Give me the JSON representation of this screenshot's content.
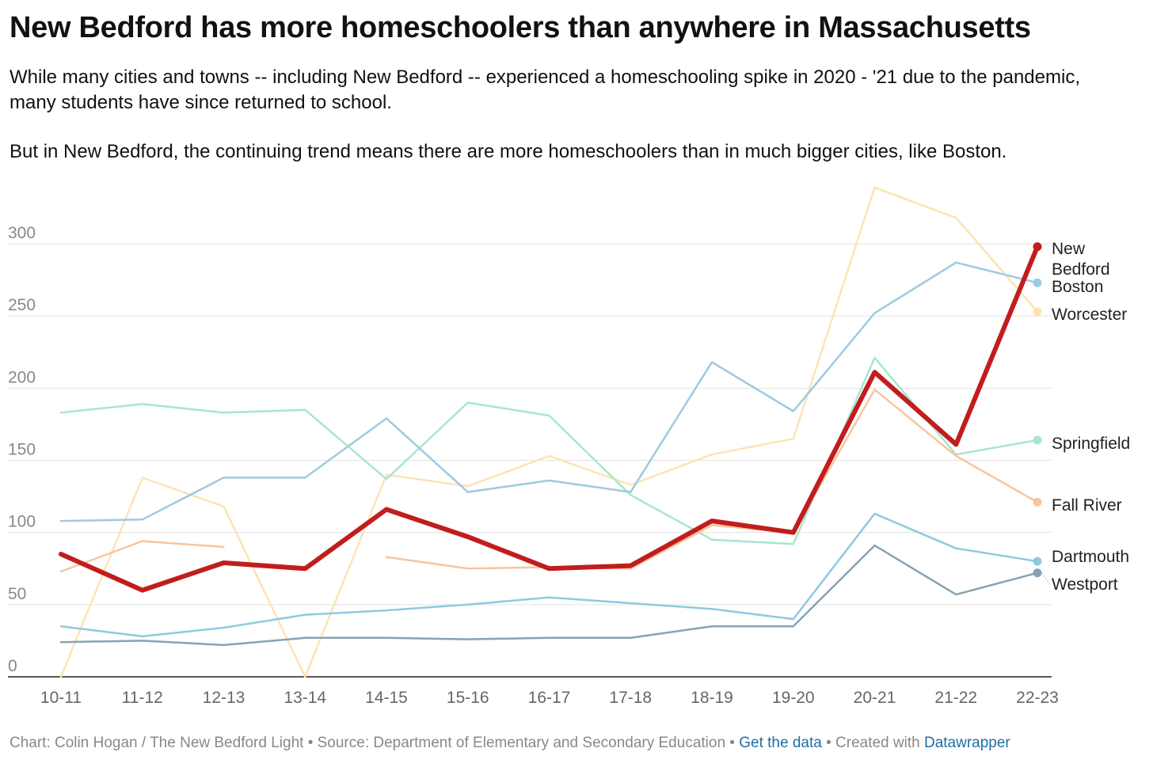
{
  "title": "New Bedford has more homeschoolers than anywhere in Massachusetts",
  "description": [
    "While many cities and towns -- including New Bedford -- experienced a homeschooling spike in 2020 - '21 due to the pandemic, many students have since returned to school.",
    "But in New Bedford, the continuing trend means there are more homeschoolers than in much bigger cities, like Boston."
  ],
  "footer": {
    "credit": "Chart: Colin Hogan / The New Bedford Light • Source: Department of Elementary and Secondary Education • ",
    "get_data": "Get the data",
    "sep": " • Created with ",
    "datawrapper": "Datawrapper"
  },
  "chart_data": {
    "type": "line",
    "categories": [
      "10-11",
      "11-12",
      "12-13",
      "13-14",
      "14-15",
      "15-16",
      "16-17",
      "17-18",
      "18-19",
      "19-20",
      "20-21",
      "21-22",
      "22-23"
    ],
    "ylim": [
      0,
      300
    ],
    "yticks": [
      0,
      50,
      100,
      150,
      200,
      250,
      300
    ],
    "grid": true,
    "legend": "direct labels at line ends",
    "series": [
      {
        "name": "Worcester",
        "color": "#fde3b5",
        "width": 2.5,
        "values": [
          0,
          138,
          118,
          0,
          140,
          132,
          153,
          133,
          154,
          165,
          339,
          318,
          253
        ]
      },
      {
        "name": "Springfield",
        "color": "#a8e6cf",
        "width": 2.5,
        "values": [
          183,
          189,
          183,
          185,
          137,
          190,
          181,
          126,
          95,
          92,
          221,
          154,
          164
        ]
      },
      {
        "name": "Boston",
        "color": "#9ecae1",
        "width": 2.5,
        "values": [
          108,
          109,
          138,
          138,
          179,
          128,
          136,
          128,
          218,
          184,
          252,
          287,
          273
        ]
      },
      {
        "name": "Fall River",
        "color": "#f7c59f",
        "width": 2.5,
        "values": [
          73,
          94,
          90,
          null,
          83,
          75,
          76,
          75,
          105,
          100,
          199,
          153,
          121
        ]
      },
      {
        "name": "Dartmouth",
        "color": "#8fc9e0",
        "width": 2.5,
        "values": [
          35,
          28,
          34,
          43,
          46,
          50,
          55,
          51,
          47,
          40,
          113,
          89,
          80
        ]
      },
      {
        "name": "Westport",
        "color": "#86a3b3",
        "width": 2.5,
        "values": [
          24,
          25,
          22,
          27,
          27,
          26,
          27,
          27,
          35,
          35,
          91,
          57,
          72
        ]
      },
      {
        "name": "New Bedford",
        "color": "#c21d1d",
        "width": 6,
        "values": [
          85,
          60,
          79,
          75,
          116,
          97,
          75,
          77,
          108,
          100,
          211,
          161,
          298
        ]
      }
    ],
    "end_labels": [
      {
        "series": "New Bedford",
        "lines": [
          "New",
          "Bedford"
        ]
      },
      {
        "series": "Boston",
        "lines": [
          "Boston"
        ]
      },
      {
        "series": "Worcester",
        "lines": [
          "Worcester"
        ]
      },
      {
        "series": "Springfield",
        "lines": [
          "Springfield"
        ]
      },
      {
        "series": "Fall River",
        "lines": [
          "Fall River"
        ]
      },
      {
        "series": "Dartmouth",
        "lines": [
          "Dartmouth"
        ]
      },
      {
        "series": "Westport",
        "lines": [
          "Westport"
        ]
      }
    ]
  }
}
